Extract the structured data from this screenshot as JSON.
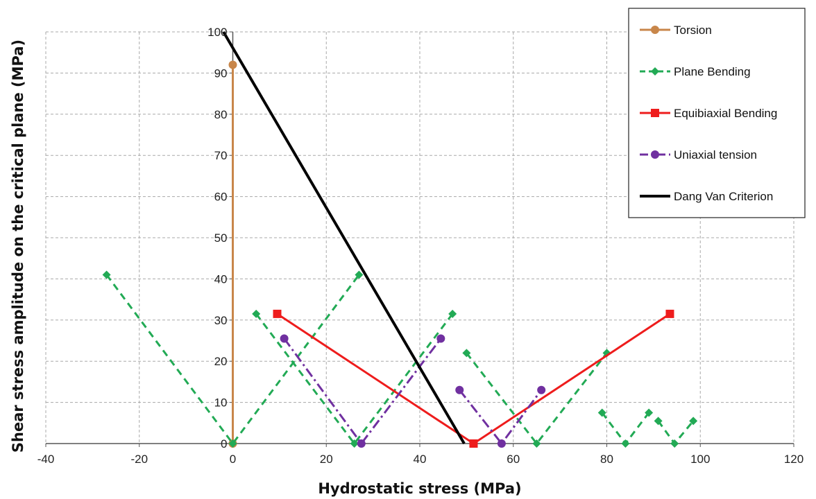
{
  "chart_data": {
    "type": "line",
    "title": "",
    "xlabel": "Hydrostatic stress (MPa)",
    "ylabel": "Shear stress amplitude  on the critical plane (MPa)",
    "xlim": [
      -40,
      120
    ],
    "ylim": [
      0,
      100
    ],
    "xticks": [
      -40,
      -20,
      0,
      20,
      40,
      60,
      80,
      100,
      120
    ],
    "yticks": [
      0,
      10,
      20,
      30,
      40,
      50,
      60,
      70,
      80,
      90,
      100
    ],
    "grid": true,
    "legend_position": "top-right",
    "series": [
      {
        "name": "Torsion",
        "color": "#c8864a",
        "line": "solid",
        "marker": "circle",
        "segments": [
          [
            [
              0,
              0
            ],
            [
              0,
              92
            ]
          ]
        ]
      },
      {
        "name": "Plane Bending",
        "color": "#22aa55",
        "line": "dashed",
        "marker": "diamond",
        "segments": [
          [
            [
              -27,
              41
            ],
            [
              0,
              0
            ],
            [
              27,
              41
            ]
          ],
          [
            [
              5,
              31.5
            ],
            [
              26,
              0
            ],
            [
              47,
              31.5
            ]
          ],
          [
            [
              50,
              22
            ],
            [
              65,
              0
            ],
            [
              80,
              22
            ]
          ],
          [
            [
              79,
              7.5
            ],
            [
              84,
              0
            ],
            [
              89,
              7.5
            ]
          ],
          [
            [
              91,
              5.5
            ],
            [
              94.5,
              0
            ],
            [
              98.5,
              5.5
            ]
          ]
        ]
      },
      {
        "name": "Equibiaxial Bending",
        "color": "#ee1c1c",
        "line": "solid",
        "marker": "square",
        "segments": [
          [
            [
              9.5,
              31.5
            ],
            [
              51.5,
              0
            ],
            [
              93.5,
              31.5
            ]
          ]
        ]
      },
      {
        "name": "Uniaxial tension",
        "color": "#7030a0",
        "line": "dashdot",
        "marker": "circle",
        "segments": [
          [
            [
              11,
              25.5
            ],
            [
              27.5,
              0
            ],
            [
              44.5,
              25.5
            ]
          ],
          [
            [
              48.5,
              13
            ],
            [
              57.5,
              0
            ],
            [
              66,
              13
            ]
          ]
        ]
      },
      {
        "name": "Dang Van Criterion",
        "color": "#000000",
        "line": "solid",
        "marker": "none",
        "segments": [
          [
            [
              -2,
              100
            ],
            [
              49.5,
              0
            ]
          ]
        ]
      }
    ]
  }
}
